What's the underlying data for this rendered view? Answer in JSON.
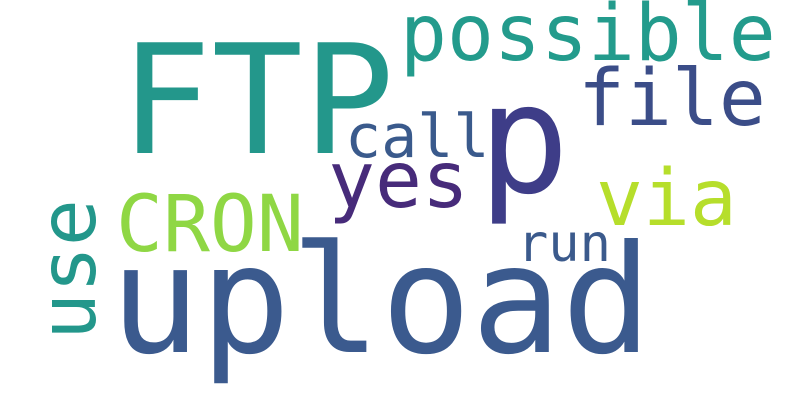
{
  "words": {
    "upload": {
      "text": "upload",
      "color": "#3b5a8e"
    },
    "ftp": {
      "text": "FTP",
      "color": "#23978b"
    },
    "p": {
      "text": "p",
      "color": "#3e3d88"
    },
    "possible": {
      "text": "possible",
      "color": "#239b8c"
    },
    "file": {
      "text": "file",
      "color": "#3b4d88"
    },
    "call": {
      "text": "call",
      "color": "#3a5a8c"
    },
    "yes": {
      "text": "yes",
      "color": "#472b7a"
    },
    "via": {
      "text": "via",
      "color": "#b6de2b"
    },
    "cron": {
      "text": "CRON",
      "color": "#8fd744"
    },
    "run": {
      "text": "run",
      "color": "#3b5a8c"
    },
    "use": {
      "text": "use",
      "color": "#23978b"
    }
  }
}
